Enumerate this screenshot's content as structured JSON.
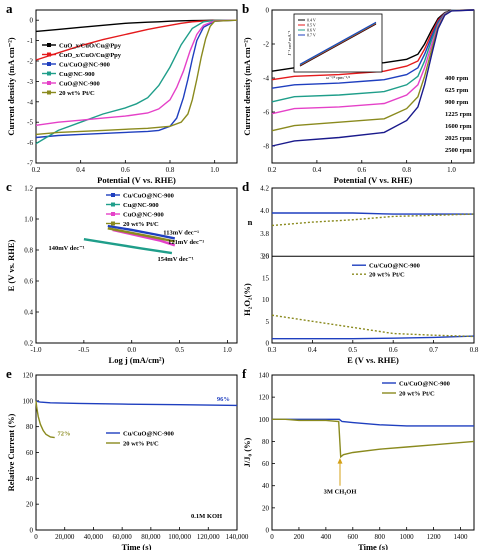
{
  "panels": {
    "a": {
      "label": "a",
      "xlabel": "Potential (V vs. RHE)",
      "ylabel": "Current density (mA cm⁻²)",
      "xlim": [
        0.2,
        1.1
      ],
      "ylim": [
        -7,
        0.5
      ],
      "xticks": [
        "0.2",
        "0.4",
        "0.6",
        "0.8",
        "1.0"
      ],
      "yticks": [
        "0",
        "-1",
        "-2",
        "-3",
        "-4",
        "-5",
        "-6",
        "-7"
      ],
      "legend": [
        "CuO_x/CuO/Cu@Ppy",
        "CuO_x/CuO/Cu@Ppy",
        "Cu/CuO@NC-900",
        "Cu@NC-900",
        "CuO@NC-900",
        "20 wt% Pt/C"
      ]
    },
    "b": {
      "label": "b",
      "xlabel": "Potential (V vs. RHE)",
      "ylabel": "Current density (mA cm⁻²)",
      "xlim": [
        0.2,
        1.1
      ],
      "ylim": [
        -9,
        0
      ],
      "xticks": [
        "0.2",
        "0.4",
        "0.6",
        "0.8",
        "1.0"
      ],
      "yticks": [
        "0",
        "-2",
        "-4",
        "-6",
        "-8"
      ],
      "rpm_labels": [
        "400 rpm",
        "625 rpm",
        "900 rpm",
        "1225 rpm",
        "1600 rpm",
        "2025 rpm",
        "2500 rpm"
      ],
      "inset_legend": [
        "0.4 V",
        "0.5 V",
        "0.6 V",
        "0.7 V"
      ],
      "inset_xlabel": "ω⁻¹/² rpm⁻¹/²",
      "inset_ylabel": "J⁻¹ cm² mA⁻¹"
    },
    "c": {
      "label": "c",
      "xlabel": "Log j (mA/cm²)",
      "ylabel": "E (V vs. RHE)",
      "xlim": [
        -1.0,
        1.1
      ],
      "ylim": [
        0.2,
        1.2
      ],
      "xticks": [
        "-1.0",
        "-0.5",
        "0.0",
        "0.5",
        "1.0"
      ],
      "yticks": [
        "0.2",
        "0.4",
        "0.6",
        "0.8",
        "1.0",
        "1.2"
      ],
      "legend": [
        "Cu/CuO@NC-900",
        "Cu@NC-900",
        "CuO@NC-900",
        "20 wt% Pt/C"
      ],
      "annotations": [
        "113mV dec⁻¹",
        "121mV dec⁻¹",
        "140mV dec⁻¹",
        "154mV dec⁻¹"
      ]
    },
    "d": {
      "label": "d",
      "xlabel": "E (V vs. RHE)",
      "ylabel_top": "n",
      "ylabel_bottom": "H₂O₂(%)",
      "xlim": [
        0.3,
        0.8
      ],
      "xticks": [
        "0.3",
        "0.4",
        "0.5",
        "0.6",
        "0.7",
        "0.8"
      ],
      "yticks_top": [
        "3.6",
        "3.8",
        "4.0",
        "4.2"
      ],
      "yticks_bottom": [
        "0",
        "5",
        "10",
        "15",
        "20"
      ],
      "legend": [
        "Cu/CuO@NC-900",
        "20 wt% Pt/C"
      ]
    },
    "e": {
      "label": "e",
      "xlabel": "Time (s)",
      "ylabel": "Relative Current (%)",
      "xlim": [
        0,
        140000
      ],
      "ylim": [
        0,
        120
      ],
      "xticks": [
        "0",
        "20,000",
        "40,000",
        "60,000",
        "80,000",
        "100,000",
        "120,000",
        "140,000"
      ],
      "yticks": [
        "0",
        "20",
        "40",
        "60",
        "80",
        "100",
        "120"
      ],
      "legend": [
        "Cu/CuO@NC-900",
        "20 wt% Pt/C"
      ],
      "ann_96": "96%",
      "ann_72": "72%",
      "ann_koh": "0.1M KOH"
    },
    "f": {
      "label": "f",
      "xlabel": "Time (s)",
      "ylabel": "J/J₀ (%)",
      "xlim": [
        0,
        1500
      ],
      "ylim": [
        0,
        140
      ],
      "xticks": [
        "0",
        "200",
        "400",
        "600",
        "800",
        "1000",
        "1200",
        "1400"
      ],
      "yticks": [
        "0",
        "20",
        "40",
        "60",
        "80",
        "100",
        "120",
        "140"
      ],
      "legend": [
        "Cu/CuO@NC-900",
        "20 wt% Pt/C"
      ],
      "ann_meoh": "3M CH₃OH"
    }
  },
  "chart_data": [
    {
      "panel": "a",
      "type": "line",
      "series": [
        {
          "name": "CuO_x/CuO/Cu@Ppy",
          "color": "#000000",
          "x": [
            0.2,
            0.3,
            0.4,
            0.5,
            0.6,
            0.7,
            0.75,
            0.8,
            0.85,
            0.9,
            0.95,
            1.0,
            1.1
          ],
          "y": [
            -0.55,
            -0.45,
            -0.35,
            -0.25,
            -0.15,
            -0.1,
            -0.08,
            -0.05,
            -0.03,
            -0.02,
            -0.01,
            0,
            0
          ]
        },
        {
          "name": "CuO_x/CuO/Cu@Ppy",
          "color": "#e41a1c",
          "x": [
            0.2,
            0.3,
            0.4,
            0.5,
            0.6,
            0.7,
            0.75,
            0.8,
            0.85,
            0.9,
            0.95,
            1.0,
            1.1
          ],
          "y": [
            -1.95,
            -1.6,
            -1.25,
            -0.95,
            -0.7,
            -0.45,
            -0.35,
            -0.25,
            -0.15,
            -0.08,
            -0.04,
            -0.01,
            0
          ]
        },
        {
          "name": "Cu/CuO@NC-900",
          "color": "#1f3fbf",
          "x": [
            0.2,
            0.3,
            0.4,
            0.5,
            0.6,
            0.7,
            0.75,
            0.8,
            0.83,
            0.86,
            0.88,
            0.9,
            0.92,
            0.95,
            1.0,
            1.1
          ],
          "y": [
            -5.75,
            -5.65,
            -5.6,
            -5.55,
            -5.5,
            -5.45,
            -5.4,
            -5.2,
            -4.8,
            -3.8,
            -2.9,
            -1.9,
            -1.0,
            -0.35,
            -0.05,
            0
          ]
        },
        {
          "name": "Cu@NC-900",
          "color": "#1f9e8a",
          "x": [
            0.2,
            0.3,
            0.4,
            0.5,
            0.6,
            0.65,
            0.7,
            0.75,
            0.8,
            0.85,
            0.9,
            0.95,
            1.0,
            1.1
          ],
          "y": [
            -6.05,
            -5.4,
            -5.0,
            -4.6,
            -4.3,
            -4.1,
            -3.8,
            -3.2,
            -2.3,
            -1.2,
            -0.4,
            -0.08,
            -0.01,
            0
          ]
        },
        {
          "name": "CuO@NC-900",
          "color": "#e541c8",
          "x": [
            0.2,
            0.3,
            0.4,
            0.5,
            0.6,
            0.7,
            0.75,
            0.8,
            0.83,
            0.86,
            0.89,
            0.92,
            0.95,
            1.0,
            1.1
          ],
          "y": [
            -5.15,
            -5.0,
            -4.9,
            -4.8,
            -4.7,
            -4.55,
            -4.35,
            -3.9,
            -3.3,
            -2.5,
            -1.5,
            -0.7,
            -0.25,
            -0.03,
            0
          ]
        },
        {
          "name": "20 wt% Pt/C",
          "color": "#8a8a1e",
          "x": [
            0.2,
            0.3,
            0.4,
            0.5,
            0.6,
            0.7,
            0.8,
            0.85,
            0.88,
            0.9,
            0.92,
            0.94,
            0.96,
            0.98,
            1.0,
            1.1
          ],
          "y": [
            -5.6,
            -5.5,
            -5.45,
            -5.4,
            -5.35,
            -5.3,
            -5.2,
            -5.0,
            -4.6,
            -3.9,
            -2.9,
            -1.8,
            -0.9,
            -0.3,
            -0.05,
            0
          ]
        }
      ]
    },
    {
      "panel": "b",
      "type": "line",
      "series": [
        {
          "name": "400 rpm",
          "color": "#000000",
          "x": [
            0.2,
            0.3,
            0.5,
            0.7,
            0.8,
            0.85,
            0.88,
            0.91,
            0.94,
            0.97,
            1.0,
            1.1
          ],
          "y": [
            -3.6,
            -3.4,
            -3.3,
            -3.1,
            -2.9,
            -2.6,
            -2.0,
            -1.2,
            -0.5,
            -0.15,
            -0.02,
            0
          ]
        },
        {
          "name": "625 rpm",
          "color": "#e41a1c",
          "x": [
            0.2,
            0.3,
            0.5,
            0.7,
            0.8,
            0.85,
            0.88,
            0.91,
            0.94,
            0.97,
            1.0,
            1.1
          ],
          "y": [
            -4.1,
            -3.9,
            -3.8,
            -3.6,
            -3.3,
            -3.0,
            -2.3,
            -1.4,
            -0.6,
            -0.18,
            -0.02,
            0
          ]
        },
        {
          "name": "900 rpm",
          "color": "#1f3fbf",
          "x": [
            0.2,
            0.3,
            0.5,
            0.7,
            0.8,
            0.85,
            0.88,
            0.91,
            0.94,
            0.97,
            1.0,
            1.1
          ],
          "y": [
            -4.6,
            -4.4,
            -4.3,
            -4.1,
            -3.8,
            -3.4,
            -2.6,
            -1.6,
            -0.7,
            -0.2,
            -0.03,
            0
          ]
        },
        {
          "name": "1225 rpm",
          "color": "#1f9e8a",
          "x": [
            0.2,
            0.3,
            0.5,
            0.7,
            0.8,
            0.85,
            0.88,
            0.91,
            0.94,
            0.97,
            1.0,
            1.1
          ],
          "y": [
            -5.4,
            -5.1,
            -5.0,
            -4.8,
            -4.4,
            -3.9,
            -3.0,
            -1.8,
            -0.8,
            -0.22,
            -0.03,
            0
          ]
        },
        {
          "name": "1600 rpm",
          "color": "#e541c8",
          "x": [
            0.2,
            0.3,
            0.5,
            0.7,
            0.8,
            0.85,
            0.88,
            0.91,
            0.94,
            0.97,
            1.0,
            1.1
          ],
          "y": [
            -6.1,
            -5.8,
            -5.7,
            -5.5,
            -5.0,
            -4.4,
            -3.4,
            -2.1,
            -0.9,
            -0.25,
            -0.04,
            0
          ]
        },
        {
          "name": "2025 rpm",
          "color": "#8a8a1e",
          "x": [
            0.2,
            0.3,
            0.5,
            0.7,
            0.8,
            0.85,
            0.88,
            0.91,
            0.94,
            0.97,
            1.0,
            1.1
          ],
          "y": [
            -7.1,
            -6.8,
            -6.6,
            -6.4,
            -5.8,
            -5.1,
            -3.9,
            -2.4,
            -1.0,
            -0.28,
            -0.04,
            0
          ]
        },
        {
          "name": "2500 rpm",
          "color": "#1a1a8c",
          "x": [
            0.2,
            0.3,
            0.5,
            0.7,
            0.8,
            0.85,
            0.88,
            0.91,
            0.94,
            0.97,
            1.0,
            1.1
          ],
          "y": [
            -8.0,
            -7.7,
            -7.5,
            -7.2,
            -6.5,
            -5.7,
            -4.4,
            -2.7,
            -1.1,
            -0.3,
            -0.05,
            0
          ]
        }
      ]
    },
    {
      "panel": "c",
      "type": "line",
      "series": [
        {
          "name": "Cu/CuO@NC-900",
          "color": "#1f3fbf",
          "x": [
            -0.25,
            0.0,
            0.25,
            0.45
          ],
          "y": [
            0.955,
            0.93,
            0.9,
            0.875
          ]
        },
        {
          "name": "Cu@NC-900",
          "color": "#1f9e8a",
          "x": [
            -0.5,
            -0.2,
            0.1,
            0.42
          ],
          "y": [
            0.87,
            0.84,
            0.81,
            0.78
          ]
        },
        {
          "name": "CuO@NC-900",
          "color": "#e541c8",
          "x": [
            -0.2,
            0.05,
            0.3,
            0.45
          ],
          "y": [
            0.93,
            0.895,
            0.86,
            0.83
          ]
        },
        {
          "name": "20 wt% Pt/C",
          "color": "#8a8a1e",
          "x": [
            -0.25,
            0.0,
            0.25,
            0.45
          ],
          "y": [
            0.94,
            0.91,
            0.88,
            0.855
          ]
        }
      ]
    },
    {
      "panel": "d",
      "type": "line",
      "series": [
        {
          "name": "Cu/CuO@NC-900 (n)",
          "color": "#1f3fbf",
          "x": [
            0.3,
            0.4,
            0.5,
            0.6,
            0.7,
            0.8
          ],
          "y": [
            3.98,
            3.98,
            3.98,
            3.97,
            3.97,
            3.97
          ]
        },
        {
          "name": "20 wt% Pt/C (n)",
          "color": "#8a8a1e",
          "x": [
            0.3,
            0.4,
            0.5,
            0.6,
            0.7,
            0.8
          ],
          "y": [
            3.87,
            3.9,
            3.92,
            3.95,
            3.96,
            3.97
          ]
        },
        {
          "name": "Cu/CuO@NC-900 (H2O2%)",
          "color": "#1f3fbf",
          "x": [
            0.3,
            0.4,
            0.5,
            0.6,
            0.7,
            0.8
          ],
          "y": [
            1.0,
            1.0,
            1.0,
            1.1,
            1.3,
            1.6
          ]
        },
        {
          "name": "20 wt% Pt/C (H2O2%)",
          "color": "#8a8a1e",
          "x": [
            0.3,
            0.4,
            0.5,
            0.6,
            0.7,
            0.8
          ],
          "y": [
            6.4,
            5.0,
            3.6,
            2.2,
            1.8,
            1.5
          ]
        }
      ]
    },
    {
      "panel": "e",
      "type": "line",
      "series": [
        {
          "name": "Cu/CuO@NC-900",
          "color": "#1f3fbf",
          "x": [
            0,
            1000,
            3000,
            10000,
            30000,
            60000,
            100000,
            140000
          ],
          "y": [
            100,
            99.5,
            99,
            98.5,
            98,
            97.5,
            97,
            96.5
          ]
        },
        {
          "name": "20 wt% Pt/C",
          "color": "#8a8a1e",
          "x": [
            0,
            500,
            1500,
            3000,
            5000,
            7000,
            10000,
            13000
          ],
          "y": [
            100,
            95,
            88,
            82,
            77,
            74,
            72,
            71.5
          ]
        }
      ]
    },
    {
      "panel": "f",
      "type": "line",
      "series": [
        {
          "name": "Cu/CuO@NC-900",
          "color": "#1f3fbf",
          "x": [
            0,
            100,
            200,
            300,
            400,
            500,
            520,
            600,
            800,
            1000,
            1200,
            1500
          ],
          "y": [
            100,
            100,
            100,
            100,
            100,
            100,
            98,
            97,
            95,
            94,
            94,
            94
          ]
        },
        {
          "name": "20 wt% Pt/C",
          "color": "#8a8a1e",
          "x": [
            0,
            100,
            200,
            300,
            400,
            495,
            510,
            530,
            600,
            800,
            1000,
            1200,
            1500
          ],
          "y": [
            100,
            100,
            99,
            99,
            99,
            98,
            66,
            68,
            70,
            73,
            75,
            77,
            80
          ]
        }
      ]
    }
  ]
}
